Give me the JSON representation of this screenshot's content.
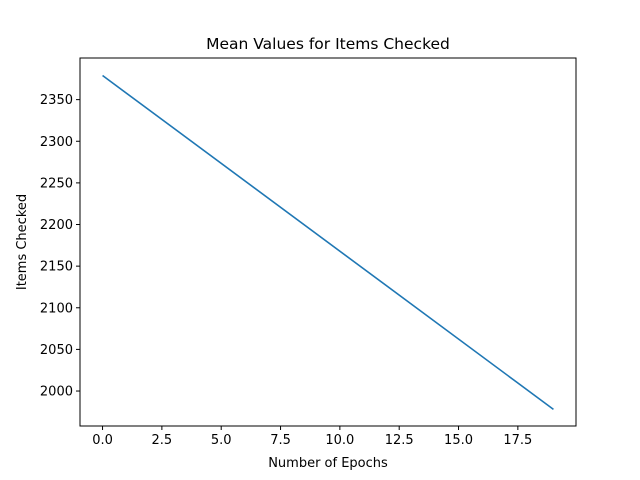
{
  "chart_data": {
    "type": "line",
    "title": "Mean Values for Items Checked",
    "xlabel": "Number of Epochs",
    "ylabel": "Items Checked",
    "xlim": [
      -0.95,
      19.95
    ],
    "ylim": [
      1958,
      2400
    ],
    "x_ticks": [
      0.0,
      2.5,
      5.0,
      7.5,
      10.0,
      12.5,
      15.0,
      17.5
    ],
    "x_tick_labels": [
      "0.0",
      "2.5",
      "5.0",
      "7.5",
      "10.0",
      "12.5",
      "15.0",
      "17.5"
    ],
    "y_ticks": [
      2000,
      2050,
      2100,
      2150,
      2200,
      2250,
      2300,
      2350
    ],
    "y_tick_labels": [
      "2000",
      "2050",
      "2100",
      "2150",
      "2200",
      "2250",
      "2300",
      "2350"
    ],
    "grid": false,
    "series": [
      {
        "color": "#1f77b4",
        "x": [
          0,
          19
        ],
        "y": [
          2379,
          1978
        ]
      }
    ]
  }
}
